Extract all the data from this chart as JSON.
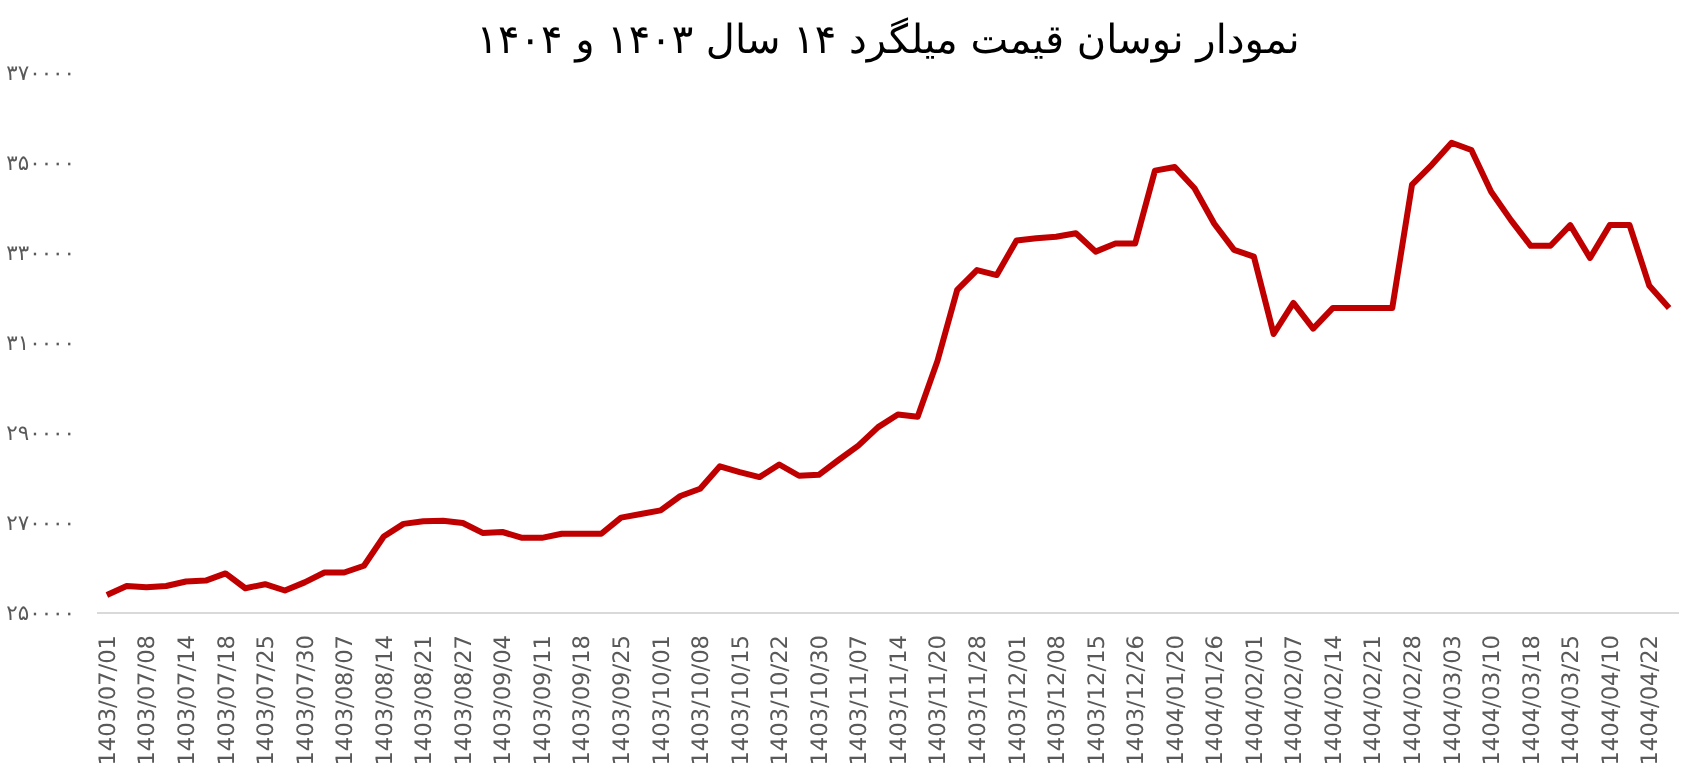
{
  "chart_data": {
    "type": "line",
    "title": "نمودار نوسان قیمت میلگرد ۱۴ سال ۱۴۰۳ و ۱۴۰۴",
    "categories": [
      "1403/07/01",
      null,
      "1403/07/08",
      null,
      "1403/07/14",
      null,
      "1403/07/18",
      null,
      "1403/07/25",
      null,
      "1403/07/30",
      null,
      "1403/08/07",
      null,
      "1403/08/14",
      null,
      "1403/08/21",
      null,
      "1403/08/27",
      null,
      "1403/09/04",
      null,
      "1403/09/11",
      null,
      "1403/09/18",
      null,
      "1403/09/25",
      null,
      "1403/10/01",
      null,
      "1403/10/08",
      null,
      "1403/10/15",
      null,
      "1403/10/22",
      null,
      "1403/10/30",
      null,
      "1403/11/07",
      null,
      "1403/11/14",
      null,
      "1403/11/20",
      null,
      "1403/11/28",
      null,
      "1403/12/01",
      null,
      "1403/12/08",
      null,
      "1403/12/15",
      null,
      "1403/12/26",
      null,
      "1404/01/20",
      null,
      "1404/01/26",
      null,
      "1404/02/01",
      null,
      "1404/02/07",
      null,
      "1404/02/14",
      null,
      "1404/02/21",
      null,
      "1404/02/28",
      null,
      "1404/03/03",
      null,
      "1404/03/10",
      null,
      "1404/03/18",
      null,
      "1404/03/25",
      null,
      "1404/04/10",
      null,
      "1404/04/22",
      null
    ],
    "series": [
      {
        "color": "#c00000",
        "values": [
          254000,
          256000,
          255700,
          256000,
          257000,
          257200,
          258800,
          255500,
          256400,
          255000,
          256800,
          259000,
          259000,
          260500,
          267000,
          269800,
          270400,
          270500,
          270000,
          267800,
          268000,
          266700,
          266700,
          267600,
          267600,
          267600,
          271200,
          272000,
          272800,
          276000,
          277600,
          282600,
          281300,
          280200,
          283000,
          280500,
          280700,
          284000,
          287200,
          291300,
          294100,
          293600,
          306000,
          321800,
          326200,
          325100,
          332800,
          333300,
          333600,
          334400,
          330300,
          332100,
          332100,
          348300,
          349100,
          344400,
          336500,
          330700,
          329200,
          312000,
          318900,
          313200,
          317800,
          317800,
          317800,
          317800,
          345200,
          349600,
          354500,
          352900,
          343600,
          337300,
          331600,
          331600,
          336200,
          328900,
          336200,
          336200,
          322700,
          317800
        ]
      }
    ],
    "ylim": [
      250000,
      370000
    ],
    "yticks": [
      {
        "value": 250000,
        "label": "۲۵۰۰۰۰"
      },
      {
        "value": 270000,
        "label": "۲۷۰۰۰۰"
      },
      {
        "value": 290000,
        "label": "۲۹۰۰۰۰"
      },
      {
        "value": 310000,
        "label": "۳۱۰۰۰۰"
      },
      {
        "value": 330000,
        "label": "۳۳۰۰۰۰"
      },
      {
        "value": 350000,
        "label": "۳۵۰۰۰۰"
      },
      {
        "value": 370000,
        "label": "۳۷۰۰۰۰"
      }
    ],
    "grid": false,
    "marker": "none",
    "line_style": "solid"
  }
}
